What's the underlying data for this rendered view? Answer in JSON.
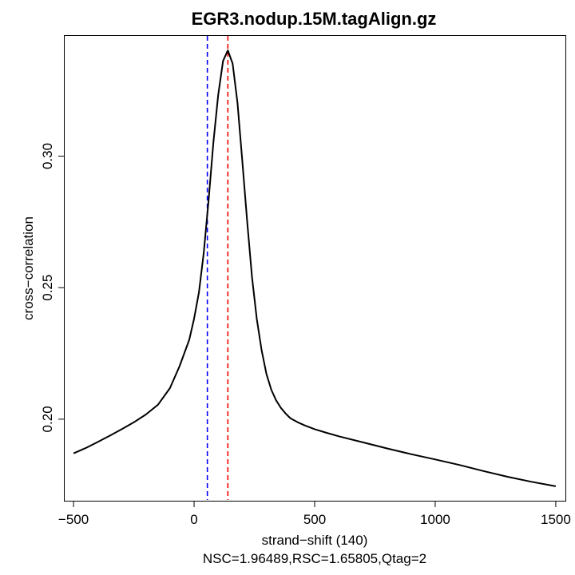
{
  "chart_data": {
    "type": "line",
    "title": "EGR3.nodup.15M.tagAlign.gz",
    "xlabel": "strand−shift (140)",
    "subtitle": "NSC=1.96489,RSC=1.65805,Qtag=2",
    "ylabel": "cross−correlation",
    "xlim": [
      -540,
      1540
    ],
    "ylim": [
      0.169,
      0.346
    ],
    "x_ticks": [
      -500,
      0,
      500,
      1000,
      1500
    ],
    "x_tick_labels": [
      "−500",
      "0",
      "500",
      "1000",
      "1500"
    ],
    "y_ticks": [
      0.2,
      0.25,
      0.3
    ],
    "y_tick_labels": [
      "0.20",
      "0.25",
      "0.30"
    ],
    "grid": false,
    "vlines": [
      {
        "x": 55,
        "color": "#0000ff",
        "style": "dashed"
      },
      {
        "x": 140,
        "color": "#ff0000",
        "style": "dashed"
      }
    ],
    "series": [
      {
        "color": "#000000",
        "x": [
          -500,
          -450,
          -400,
          -350,
          -300,
          -250,
          -200,
          -150,
          -100,
          -60,
          -20,
          0,
          20,
          40,
          60,
          80,
          100,
          120,
          140,
          160,
          180,
          200,
          220,
          240,
          260,
          280,
          300,
          320,
          340,
          360,
          380,
          400,
          430,
          460,
          500,
          550,
          600,
          700,
          800,
          900,
          1000,
          1100,
          1200,
          1300,
          1400,
          1500
        ],
        "y": [
          0.187,
          0.189,
          0.1913,
          0.1937,
          0.1962,
          0.1988,
          0.2018,
          0.2055,
          0.2118,
          0.2202,
          0.2302,
          0.2382,
          0.2482,
          0.2632,
          0.2832,
          0.3052,
          0.3232,
          0.3362,
          0.3402,
          0.3352,
          0.3202,
          0.2982,
          0.2752,
          0.2542,
          0.2382,
          0.2262,
          0.2172,
          0.2112,
          0.2072,
          0.2043,
          0.2021,
          0.2003,
          0.1988,
          0.1976,
          0.1962,
          0.1948,
          0.1935,
          0.1912,
          0.1889,
          0.1867,
          0.1847,
          0.1826,
          0.1803,
          0.1781,
          0.1762,
          0.1745
        ]
      }
    ]
  }
}
